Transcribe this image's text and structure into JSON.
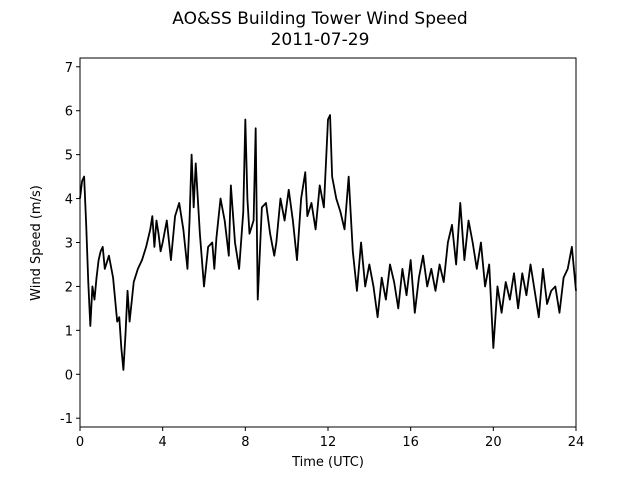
{
  "chart_data": {
    "type": "line",
    "title": "AO&SS Building Tower Wind Speed",
    "subtitle": "2011-07-29",
    "x_label": "Time (UTC)",
    "y_label": "Wind Speed (m/s)",
    "color": "#000000",
    "x": [
      0,
      0.1,
      0.2,
      0.3,
      0.4,
      0.5,
      0.6,
      0.7,
      0.8,
      0.9,
      1.0,
      1.1,
      1.2,
      1.4,
      1.6,
      1.8,
      1.9,
      2.0,
      2.1,
      2.2,
      2.3,
      2.4,
      2.6,
      2.8,
      3.0,
      3.2,
      3.4,
      3.5,
      3.6,
      3.7,
      3.8,
      3.9,
      4.0,
      4.2,
      4.4,
      4.6,
      4.8,
      5.0,
      5.2,
      5.3,
      5.4,
      5.5,
      5.6,
      5.8,
      6.0,
      6.2,
      6.4,
      6.5,
      6.6,
      6.8,
      7.0,
      7.2,
      7.3,
      7.5,
      7.7,
      7.9,
      8.0,
      8.1,
      8.2,
      8.4,
      8.5,
      8.6,
      8.8,
      9.0,
      9.2,
      9.4,
      9.5,
      9.7,
      9.9,
      10.1,
      10.3,
      10.5,
      10.7,
      10.9,
      11.0,
      11.2,
      11.4,
      11.6,
      11.8,
      12.0,
      12.1,
      12.2,
      12.4,
      12.6,
      12.8,
      13.0,
      13.2,
      13.4,
      13.6,
      13.8,
      14.0,
      14.2,
      14.4,
      14.6,
      14.8,
      15.0,
      15.2,
      15.4,
      15.6,
      15.8,
      16.0,
      16.2,
      16.4,
      16.6,
      16.8,
      17.0,
      17.2,
      17.4,
      17.6,
      17.8,
      18.0,
      18.2,
      18.4,
      18.6,
      18.8,
      19.0,
      19.2,
      19.4,
      19.6,
      19.8,
      20.0,
      20.2,
      20.4,
      20.6,
      20.8,
      21.0,
      21.2,
      21.4,
      21.6,
      21.8,
      22.0,
      22.2,
      22.4,
      22.6,
      22.8,
      23.0,
      23.2,
      23.4,
      23.6,
      23.8,
      24.0
    ],
    "values": [
      4.0,
      4.4,
      4.5,
      3.4,
      2.1,
      1.1,
      2.0,
      1.7,
      2.2,
      2.6,
      2.8,
      2.9,
      2.4,
      2.7,
      2.2,
      1.2,
      1.3,
      0.6,
      0.1,
      0.9,
      1.9,
      1.2,
      2.1,
      2.4,
      2.6,
      2.9,
      3.3,
      3.6,
      2.9,
      3.5,
      3.2,
      2.8,
      3.0,
      3.5,
      2.6,
      3.6,
      3.9,
      3.3,
      2.4,
      3.5,
      5.0,
      3.8,
      4.8,
      3.2,
      2.0,
      2.9,
      3.0,
      2.4,
      3.1,
      4.0,
      3.5,
      2.7,
      4.3,
      3.0,
      2.4,
      3.7,
      5.8,
      4.0,
      3.2,
      3.5,
      5.6,
      1.7,
      3.8,
      3.9,
      3.2,
      2.7,
      3.0,
      4.0,
      3.5,
      4.2,
      3.5,
      2.6,
      4.0,
      4.6,
      3.6,
      3.9,
      3.3,
      4.3,
      3.8,
      5.8,
      5.9,
      4.5,
      4.0,
      3.7,
      3.3,
      4.5,
      2.8,
      1.9,
      3.0,
      2.0,
      2.5,
      2.0,
      1.3,
      2.2,
      1.7,
      2.5,
      2.1,
      1.5,
      2.4,
      1.8,
      2.6,
      1.4,
      2.2,
      2.7,
      2.0,
      2.4,
      1.9,
      2.5,
      2.1,
      3.0,
      3.4,
      2.5,
      3.9,
      2.6,
      3.5,
      3.0,
      2.4,
      3.0,
      2.0,
      2.5,
      0.6,
      2.0,
      1.4,
      2.1,
      1.7,
      2.3,
      1.5,
      2.3,
      1.8,
      2.5,
      1.9,
      1.3,
      2.4,
      1.6,
      1.9,
      2.0,
      1.4,
      2.2,
      2.4,
      2.9,
      1.9
    ],
    "xlim": [
      0,
      24
    ],
    "xticks": [
      0,
      4,
      8,
      12,
      16,
      20,
      24
    ],
    "ylim": [
      -1.2,
      7.2
    ],
    "yticks": [
      -1,
      0,
      1,
      2,
      3,
      4,
      5,
      6,
      7
    ]
  }
}
